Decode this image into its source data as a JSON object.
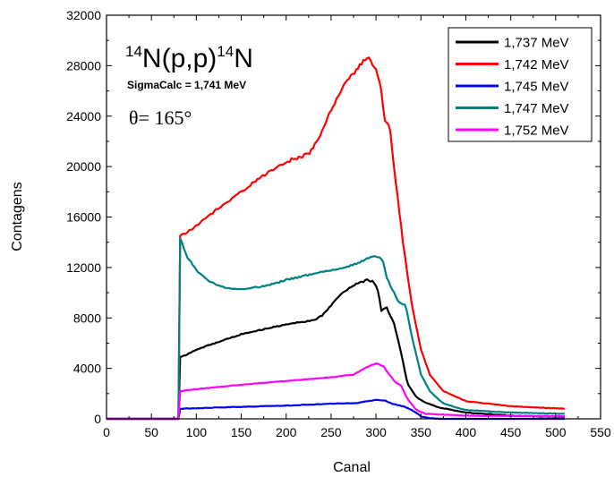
{
  "chart_data": {
    "type": "line",
    "xlabel": "Canal",
    "ylabel": "Contagens",
    "xlim": [
      0,
      550
    ],
    "ylim": [
      0,
      32000
    ],
    "xticks": [
      0,
      50,
      100,
      150,
      200,
      250,
      300,
      350,
      400,
      450,
      500,
      550
    ],
    "yticks": [
      0,
      4000,
      8000,
      12000,
      16000,
      20000,
      24000,
      28000,
      32000
    ],
    "legend_position": "top-right",
    "annotations": {
      "reaction_mass_before": "14",
      "reaction_core": "N(p,p)",
      "reaction_mass_after": "14",
      "reaction_end": "N",
      "sigma": "SigmaCalc = 1,741 MeV",
      "theta": "θ= 165°"
    },
    "series": [
      {
        "name": "1,737 MeV",
        "color": "#000000",
        "points": [
          [
            0,
            0
          ],
          [
            80,
            0
          ],
          [
            82,
            4900
          ],
          [
            90,
            5100
          ],
          [
            100,
            5500
          ],
          [
            125,
            6100
          ],
          [
            150,
            6700
          ],
          [
            175,
            7100
          ],
          [
            200,
            7500
          ],
          [
            220,
            7700
          ],
          [
            230,
            7800
          ],
          [
            240,
            8200
          ],
          [
            250,
            9000
          ],
          [
            260,
            9800
          ],
          [
            275,
            10600
          ],
          [
            290,
            11000
          ],
          [
            297,
            10900
          ],
          [
            302,
            10200
          ],
          [
            306,
            8600
          ],
          [
            312,
            8800
          ],
          [
            320,
            7600
          ],
          [
            328,
            5200
          ],
          [
            335,
            2800
          ],
          [
            345,
            1700
          ],
          [
            355,
            1300
          ],
          [
            370,
            900
          ],
          [
            400,
            500
          ],
          [
            450,
            250
          ],
          [
            510,
            150
          ]
        ]
      },
      {
        "name": "1,742 MeV",
        "color": "#ff0000",
        "points": [
          [
            0,
            0
          ],
          [
            80,
            0
          ],
          [
            82,
            14500
          ],
          [
            90,
            14800
          ],
          [
            100,
            15300
          ],
          [
            125,
            16700
          ],
          [
            150,
            18000
          ],
          [
            175,
            19300
          ],
          [
            200,
            20400
          ],
          [
            225,
            21000
          ],
          [
            235,
            22000
          ],
          [
            250,
            24500
          ],
          [
            265,
            26500
          ],
          [
            280,
            27800
          ],
          [
            290,
            28700
          ],
          [
            298,
            28000
          ],
          [
            305,
            26500
          ],
          [
            310,
            23600
          ],
          [
            315,
            23400
          ],
          [
            320,
            20000
          ],
          [
            330,
            14000
          ],
          [
            340,
            9000
          ],
          [
            350,
            5500
          ],
          [
            360,
            3500
          ],
          [
            375,
            2200
          ],
          [
            400,
            1400
          ],
          [
            450,
            1000
          ],
          [
            510,
            800
          ]
        ]
      },
      {
        "name": "1,745 MeV",
        "color": "#0000ff",
        "points": [
          [
            0,
            0
          ],
          [
            80,
            0
          ],
          [
            82,
            800
          ],
          [
            100,
            850
          ],
          [
            150,
            950
          ],
          [
            200,
            1050
          ],
          [
            250,
            1200
          ],
          [
            280,
            1250
          ],
          [
            290,
            1400
          ],
          [
            300,
            1500
          ],
          [
            310,
            1450
          ],
          [
            318,
            1200
          ],
          [
            330,
            1000
          ],
          [
            340,
            700
          ],
          [
            350,
            200
          ],
          [
            360,
            50
          ],
          [
            370,
            0
          ],
          [
            510,
            0
          ]
        ]
      },
      {
        "name": "1,747 MeV",
        "color": "#008080",
        "points": [
          [
            0,
            0
          ],
          [
            80,
            0
          ],
          [
            82,
            14300
          ],
          [
            90,
            12800
          ],
          [
            100,
            11800
          ],
          [
            115,
            10900
          ],
          [
            130,
            10400
          ],
          [
            150,
            10300
          ],
          [
            175,
            10500
          ],
          [
            200,
            11000
          ],
          [
            225,
            11400
          ],
          [
            250,
            11800
          ],
          [
            275,
            12200
          ],
          [
            290,
            12700
          ],
          [
            300,
            12900
          ],
          [
            307,
            12700
          ],
          [
            312,
            11200
          ],
          [
            320,
            10000
          ],
          [
            325,
            9300
          ],
          [
            333,
            9000
          ],
          [
            340,
            6500
          ],
          [
            350,
            3500
          ],
          [
            360,
            2200
          ],
          [
            375,
            1200
          ],
          [
            400,
            700
          ],
          [
            450,
            500
          ],
          [
            510,
            400
          ]
        ]
      },
      {
        "name": "1,752 MeV",
        "color": "#ff00ff",
        "points": [
          [
            0,
            0
          ],
          [
            80,
            0
          ],
          [
            82,
            2200
          ],
          [
            100,
            2350
          ],
          [
            150,
            2700
          ],
          [
            200,
            3000
          ],
          [
            250,
            3300
          ],
          [
            275,
            3500
          ],
          [
            290,
            4100
          ],
          [
            300,
            4400
          ],
          [
            308,
            4200
          ],
          [
            312,
            3800
          ],
          [
            320,
            3000
          ],
          [
            328,
            2600
          ],
          [
            335,
            1600
          ],
          [
            345,
            700
          ],
          [
            355,
            400
          ],
          [
            400,
            250
          ],
          [
            510,
            200
          ]
        ]
      }
    ]
  }
}
